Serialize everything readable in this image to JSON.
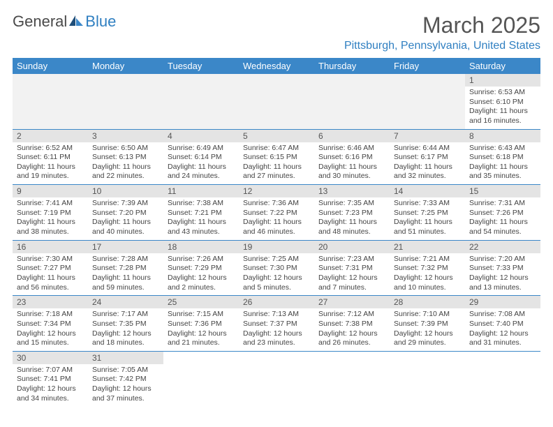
{
  "logo": {
    "text1": "General",
    "text2": "Blue"
  },
  "title": "March 2025",
  "location": "Pittsburgh, Pennsylvania, United States",
  "header_bg": "#3b87c8",
  "daynum_bg": "#e4e4e4",
  "day_row_border": "#3b87c8",
  "weekdays": [
    "Sunday",
    "Monday",
    "Tuesday",
    "Wednesday",
    "Thursday",
    "Friday",
    "Saturday"
  ],
  "weeks": [
    [
      null,
      null,
      null,
      null,
      null,
      null,
      {
        "n": "1",
        "sr": "Sunrise: 6:53 AM",
        "ss": "Sunset: 6:10 PM",
        "dl": "Daylight: 11 hours and 16 minutes."
      }
    ],
    [
      {
        "n": "2",
        "sr": "Sunrise: 6:52 AM",
        "ss": "Sunset: 6:11 PM",
        "dl": "Daylight: 11 hours and 19 minutes."
      },
      {
        "n": "3",
        "sr": "Sunrise: 6:50 AM",
        "ss": "Sunset: 6:13 PM",
        "dl": "Daylight: 11 hours and 22 minutes."
      },
      {
        "n": "4",
        "sr": "Sunrise: 6:49 AM",
        "ss": "Sunset: 6:14 PM",
        "dl": "Daylight: 11 hours and 24 minutes."
      },
      {
        "n": "5",
        "sr": "Sunrise: 6:47 AM",
        "ss": "Sunset: 6:15 PM",
        "dl": "Daylight: 11 hours and 27 minutes."
      },
      {
        "n": "6",
        "sr": "Sunrise: 6:46 AM",
        "ss": "Sunset: 6:16 PM",
        "dl": "Daylight: 11 hours and 30 minutes."
      },
      {
        "n": "7",
        "sr": "Sunrise: 6:44 AM",
        "ss": "Sunset: 6:17 PM",
        "dl": "Daylight: 11 hours and 32 minutes."
      },
      {
        "n": "8",
        "sr": "Sunrise: 6:43 AM",
        "ss": "Sunset: 6:18 PM",
        "dl": "Daylight: 11 hours and 35 minutes."
      }
    ],
    [
      {
        "n": "9",
        "sr": "Sunrise: 7:41 AM",
        "ss": "Sunset: 7:19 PM",
        "dl": "Daylight: 11 hours and 38 minutes."
      },
      {
        "n": "10",
        "sr": "Sunrise: 7:39 AM",
        "ss": "Sunset: 7:20 PM",
        "dl": "Daylight: 11 hours and 40 minutes."
      },
      {
        "n": "11",
        "sr": "Sunrise: 7:38 AM",
        "ss": "Sunset: 7:21 PM",
        "dl": "Daylight: 11 hours and 43 minutes."
      },
      {
        "n": "12",
        "sr": "Sunrise: 7:36 AM",
        "ss": "Sunset: 7:22 PM",
        "dl": "Daylight: 11 hours and 46 minutes."
      },
      {
        "n": "13",
        "sr": "Sunrise: 7:35 AM",
        "ss": "Sunset: 7:23 PM",
        "dl": "Daylight: 11 hours and 48 minutes."
      },
      {
        "n": "14",
        "sr": "Sunrise: 7:33 AM",
        "ss": "Sunset: 7:25 PM",
        "dl": "Daylight: 11 hours and 51 minutes."
      },
      {
        "n": "15",
        "sr": "Sunrise: 7:31 AM",
        "ss": "Sunset: 7:26 PM",
        "dl": "Daylight: 11 hours and 54 minutes."
      }
    ],
    [
      {
        "n": "16",
        "sr": "Sunrise: 7:30 AM",
        "ss": "Sunset: 7:27 PM",
        "dl": "Daylight: 11 hours and 56 minutes."
      },
      {
        "n": "17",
        "sr": "Sunrise: 7:28 AM",
        "ss": "Sunset: 7:28 PM",
        "dl": "Daylight: 11 hours and 59 minutes."
      },
      {
        "n": "18",
        "sr": "Sunrise: 7:26 AM",
        "ss": "Sunset: 7:29 PM",
        "dl": "Daylight: 12 hours and 2 minutes."
      },
      {
        "n": "19",
        "sr": "Sunrise: 7:25 AM",
        "ss": "Sunset: 7:30 PM",
        "dl": "Daylight: 12 hours and 5 minutes."
      },
      {
        "n": "20",
        "sr": "Sunrise: 7:23 AM",
        "ss": "Sunset: 7:31 PM",
        "dl": "Daylight: 12 hours and 7 minutes."
      },
      {
        "n": "21",
        "sr": "Sunrise: 7:21 AM",
        "ss": "Sunset: 7:32 PM",
        "dl": "Daylight: 12 hours and 10 minutes."
      },
      {
        "n": "22",
        "sr": "Sunrise: 7:20 AM",
        "ss": "Sunset: 7:33 PM",
        "dl": "Daylight: 12 hours and 13 minutes."
      }
    ],
    [
      {
        "n": "23",
        "sr": "Sunrise: 7:18 AM",
        "ss": "Sunset: 7:34 PM",
        "dl": "Daylight: 12 hours and 15 minutes."
      },
      {
        "n": "24",
        "sr": "Sunrise: 7:17 AM",
        "ss": "Sunset: 7:35 PM",
        "dl": "Daylight: 12 hours and 18 minutes."
      },
      {
        "n": "25",
        "sr": "Sunrise: 7:15 AM",
        "ss": "Sunset: 7:36 PM",
        "dl": "Daylight: 12 hours and 21 minutes."
      },
      {
        "n": "26",
        "sr": "Sunrise: 7:13 AM",
        "ss": "Sunset: 7:37 PM",
        "dl": "Daylight: 12 hours and 23 minutes."
      },
      {
        "n": "27",
        "sr": "Sunrise: 7:12 AM",
        "ss": "Sunset: 7:38 PM",
        "dl": "Daylight: 12 hours and 26 minutes."
      },
      {
        "n": "28",
        "sr": "Sunrise: 7:10 AM",
        "ss": "Sunset: 7:39 PM",
        "dl": "Daylight: 12 hours and 29 minutes."
      },
      {
        "n": "29",
        "sr": "Sunrise: 7:08 AM",
        "ss": "Sunset: 7:40 PM",
        "dl": "Daylight: 12 hours and 31 minutes."
      }
    ],
    [
      {
        "n": "30",
        "sr": "Sunrise: 7:07 AM",
        "ss": "Sunset: 7:41 PM",
        "dl": "Daylight: 12 hours and 34 minutes."
      },
      {
        "n": "31",
        "sr": "Sunrise: 7:05 AM",
        "ss": "Sunset: 7:42 PM",
        "dl": "Daylight: 12 hours and 37 minutes."
      },
      null,
      null,
      null,
      null,
      null
    ]
  ]
}
